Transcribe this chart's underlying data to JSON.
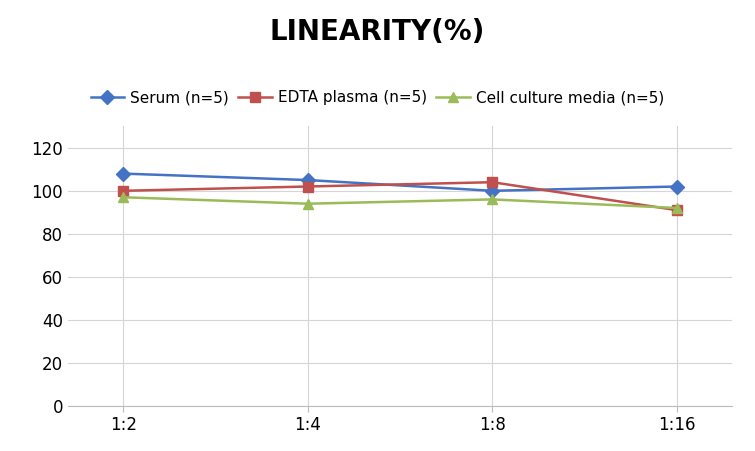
{
  "title": "LINEARITY(%)",
  "x_labels": [
    "1:2",
    "1:4",
    "1:8",
    "1:16"
  ],
  "x_positions": [
    0,
    1,
    2,
    3
  ],
  "series": [
    {
      "label": "Serum (n=5)",
      "values": [
        108,
        105,
        100,
        102
      ],
      "color": "#4472C4",
      "marker": "D",
      "markersize": 7,
      "linewidth": 1.8
    },
    {
      "label": "EDTA plasma (n=5)",
      "values": [
        100,
        102,
        104,
        91
      ],
      "color": "#C0504D",
      "marker": "s",
      "markersize": 7,
      "linewidth": 1.8
    },
    {
      "label": "Cell culture media (n=5)",
      "values": [
        97,
        94,
        96,
        92
      ],
      "color": "#9BBB59",
      "marker": "^",
      "markersize": 7,
      "linewidth": 1.8
    }
  ],
  "ylim": [
    0,
    130
  ],
  "yticks": [
    0,
    20,
    40,
    60,
    80,
    100,
    120
  ],
  "background_color": "#ffffff",
  "title_fontsize": 20,
  "legend_fontsize": 11,
  "tick_fontsize": 12,
  "grid_color": "#d5d5d5",
  "spine_color": "#bbbbbb"
}
